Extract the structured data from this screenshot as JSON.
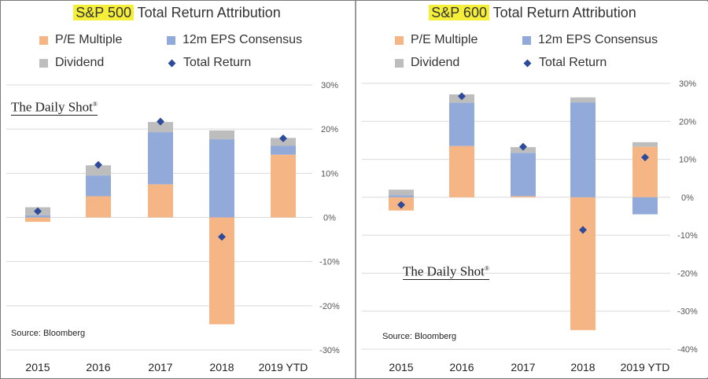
{
  "colors": {
    "pe": "#f5b584",
    "eps": "#91aad9",
    "div": "#bdbdbd",
    "total": "#2e4a9a",
    "highlight": "#f5ef3a",
    "grid": "#d9d9d9"
  },
  "legend": {
    "pe": "P/E Multiple",
    "eps": "12m EPS Consensus",
    "div": "Dividend",
    "total": "Total Return"
  },
  "watermark": "The Daily Shot",
  "chart_data": [
    {
      "type": "bar",
      "title_highlight": "S&P 500",
      "title_rest": " Total Return Attribution",
      "categories": [
        "2015",
        "2016",
        "2017",
        "2018",
        "2019 YTD"
      ],
      "stacked": true,
      "series": [
        {
          "name": "P/E Multiple",
          "key": "pe",
          "values": [
            -1.0,
            4.8,
            7.5,
            -24.2,
            14.2
          ]
        },
        {
          "name": "12m EPS Consensus",
          "key": "eps",
          "values": [
            0.5,
            4.7,
            11.8,
            17.7,
            2.0
          ]
        },
        {
          "name": "Dividend",
          "key": "div",
          "values": [
            1.8,
            2.3,
            2.3,
            2.0,
            1.8
          ]
        }
      ],
      "total_return": [
        1.4,
        11.9,
        21.7,
        -4.4,
        17.9
      ],
      "ylim": [
        -30,
        30
      ],
      "yticks": [
        30,
        20,
        10,
        0,
        -10,
        -20,
        -30
      ],
      "ytick_labels": [
        "30%",
        "20%",
        "10%",
        "0%",
        "-10%",
        "-20%",
        "-30%"
      ],
      "source": "Source: Bloomberg"
    },
    {
      "type": "bar",
      "title_highlight": "S&P 600",
      "title_rest": " Total Return Attribution",
      "categories": [
        "2015",
        "2016",
        "2017",
        "2018",
        "2019 YTD"
      ],
      "stacked": true,
      "series": [
        {
          "name": "P/E Multiple",
          "key": "pe",
          "values": [
            -3.5,
            13.5,
            0.3,
            -35.0,
            13.3
          ]
        },
        {
          "name": "12m EPS Consensus",
          "key": "eps",
          "values": [
            0.5,
            11.4,
            11.4,
            25.0,
            -4.5
          ]
        },
        {
          "name": "Dividend",
          "key": "div",
          "values": [
            1.5,
            2.2,
            1.5,
            1.3,
            1.2
          ]
        }
      ],
      "total_return": [
        -2.0,
        26.6,
        13.3,
        -8.6,
        10.5
      ],
      "ylim": [
        -40,
        30
      ],
      "yticks": [
        30,
        20,
        10,
        0,
        -10,
        -20,
        -30,
        -40
      ],
      "ytick_labels": [
        "30%",
        "20%",
        "10%",
        "0%",
        "-10%",
        "-20%",
        "-30%",
        "-40%"
      ],
      "source": "Source: Bloomberg"
    }
  ]
}
